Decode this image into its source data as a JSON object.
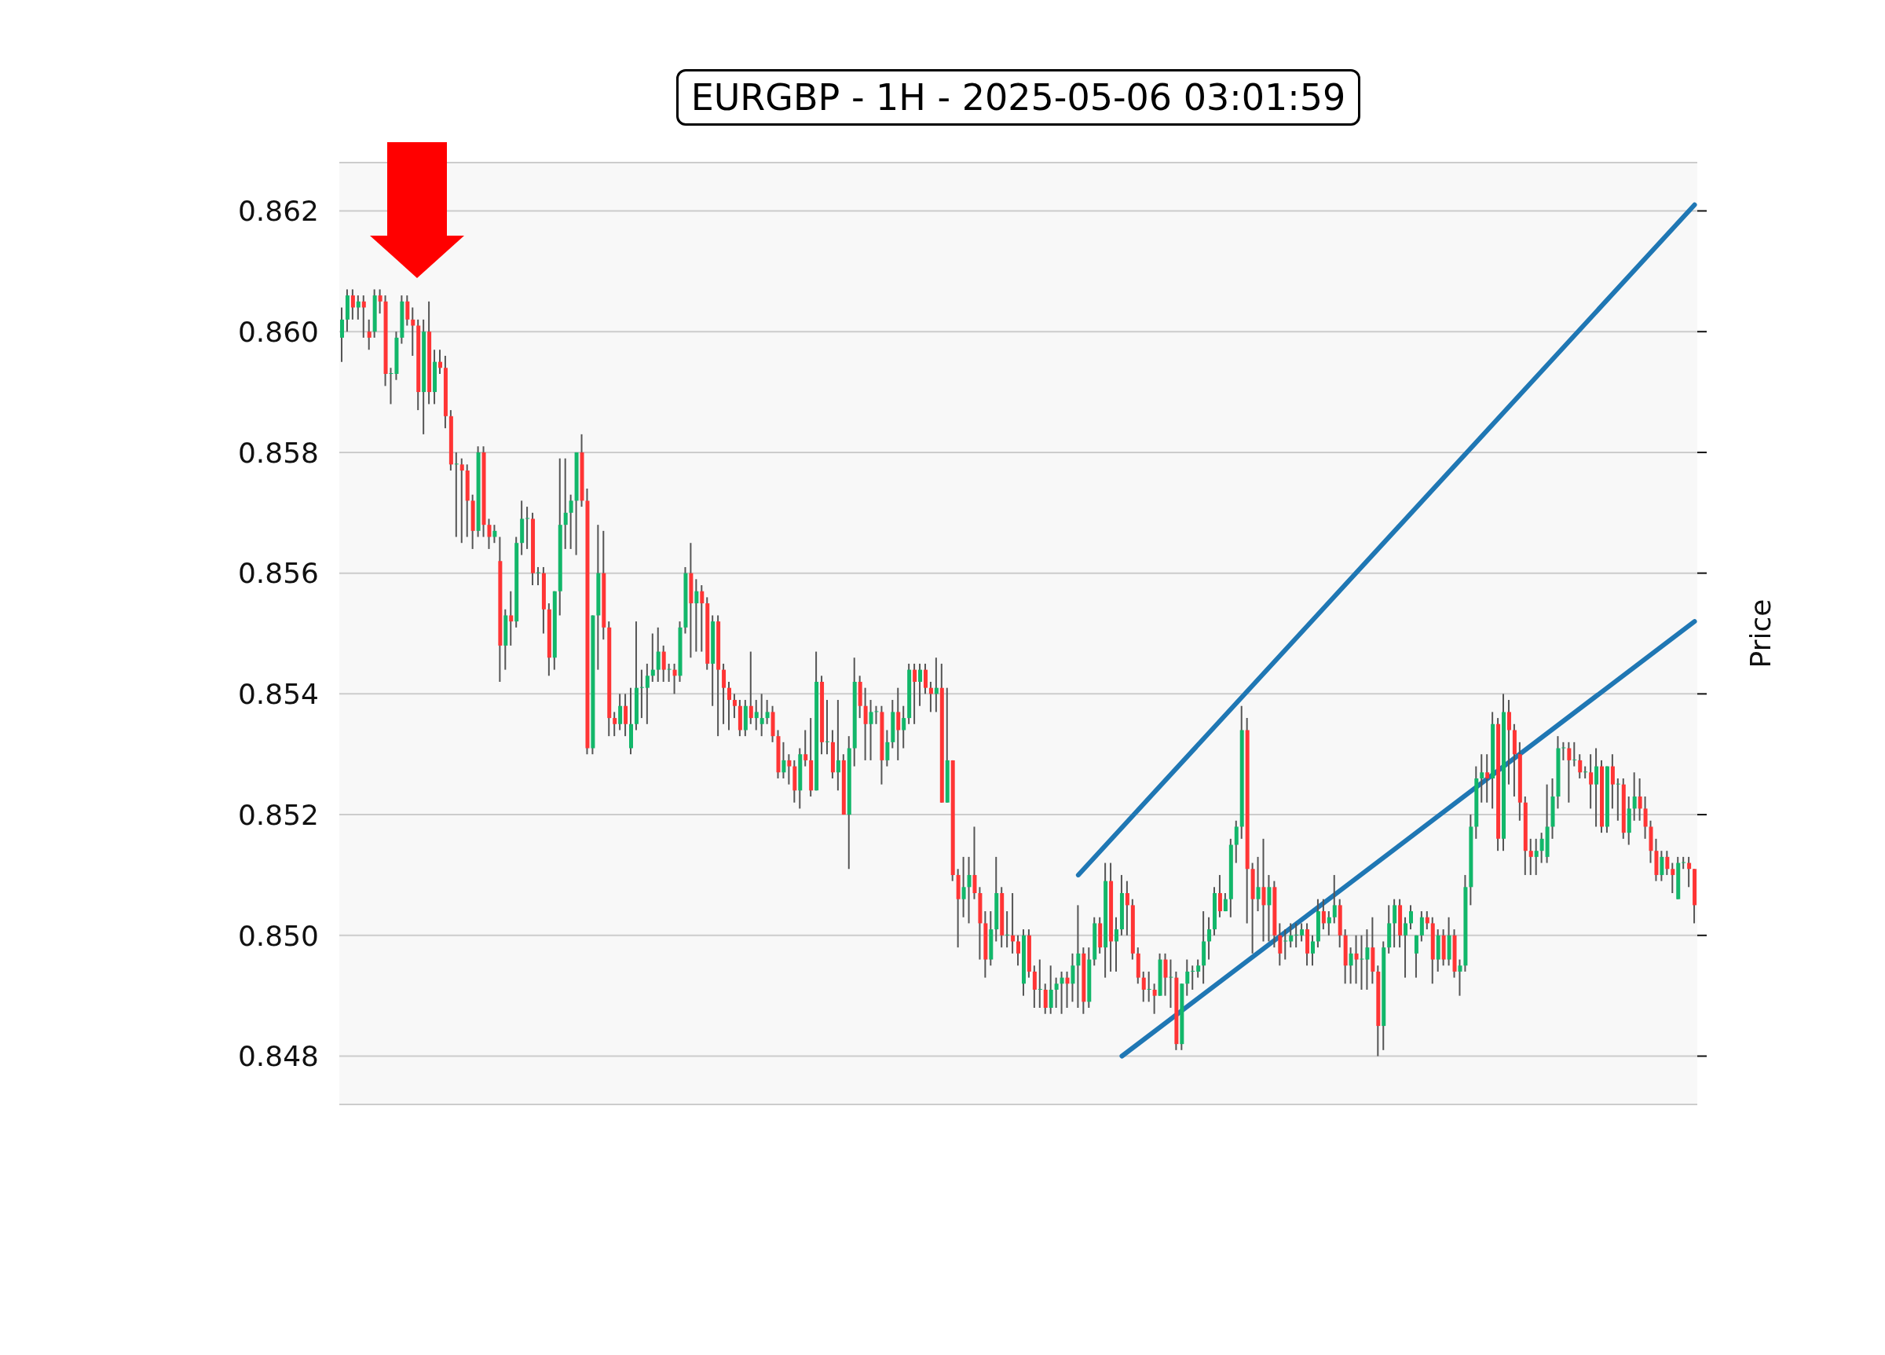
{
  "chart_data": {
    "type": "candlestick",
    "title": "EURGBP - 1H - 2025-05-06 03:01:59",
    "ylabel": "Price",
    "categories": [
      null,
      null,
      null,
      null,
      null,
      null,
      null,
      null,
      null,
      null,
      null,
      null,
      null,
      null,
      null,
      null,
      null,
      null,
      null,
      null,
      null,
      null,
      null,
      null,
      null,
      null,
      null,
      null,
      null,
      null,
      null,
      null,
      null,
      null,
      null,
      null,
      null,
      null,
      null,
      null,
      null,
      null,
      null,
      null,
      null,
      null,
      null,
      null,
      null,
      null,
      null,
      null,
      null,
      null,
      null,
      null,
      null,
      null,
      null,
      null,
      null,
      null,
      null,
      null,
      null,
      null,
      null,
      null,
      null,
      null,
      null,
      null,
      null,
      null,
      null,
      null,
      null,
      null,
      null,
      null,
      null,
      null,
      null,
      null,
      null,
      null,
      null,
      null,
      null,
      null,
      null,
      null,
      null,
      null,
      null,
      null,
      null,
      null,
      null,
      null,
      null,
      null,
      null,
      null,
      null,
      null,
      null,
      null,
      null,
      null,
      null,
      null,
      null,
      null,
      null,
      null,
      null,
      null,
      null,
      null,
      null,
      null,
      null,
      null,
      null,
      null,
      null,
      null,
      null,
      null,
      null,
      null,
      null,
      null,
      null,
      null,
      null,
      null,
      null,
      null,
      null,
      null,
      null,
      null,
      null,
      null,
      null,
      null,
      null,
      null,
      null,
      null,
      null,
      null,
      null,
      null,
      null,
      null,
      null,
      null,
      null,
      null,
      null,
      null,
      null,
      null,
      null,
      null,
      null,
      null,
      null,
      null,
      null,
      null,
      null,
      null,
      null,
      null,
      null,
      null,
      null,
      null,
      null,
      null,
      null,
      null,
      null,
      null,
      null,
      null,
      null,
      null,
      null,
      null,
      null,
      null,
      null,
      null,
      null,
      null,
      null,
      null,
      null,
      null,
      null,
      null,
      null,
      null,
      null,
      null,
      null,
      null,
      null,
      null,
      null,
      null,
      null,
      null,
      null,
      null,
      null,
      null,
      null,
      null,
      null,
      null,
      null,
      null,
      null,
      null,
      null,
      null,
      null,
      null,
      null,
      null,
      null,
      null,
      null,
      null,
      null,
      null,
      null,
      null,
      null,
      null,
      null,
      null,
      null
    ],
    "ohlc": [
      [
        0.8599,
        0.8604,
        0.8595,
        0.8602
      ],
      [
        0.8602,
        0.8607,
        0.86,
        0.8606
      ],
      [
        0.8606,
        0.8607,
        0.8602,
        0.8604
      ],
      [
        0.8604,
        0.8606,
        0.8602,
        0.8605
      ],
      [
        0.8605,
        0.8606,
        0.8599,
        0.8604
      ],
      [
        0.86,
        0.8602,
        0.8597,
        0.8599
      ],
      [
        0.86,
        0.8607,
        0.8599,
        0.8606
      ],
      [
        0.8606,
        0.8607,
        0.8603,
        0.8605
      ],
      [
        0.8605,
        0.8606,
        0.8591,
        0.8593
      ],
      [
        0.8593,
        0.8594,
        0.8588,
        0.8593
      ],
      [
        0.8593,
        0.86,
        0.8592,
        0.8599
      ],
      [
        0.8599,
        0.8606,
        0.8598,
        0.8605
      ],
      [
        0.8605,
        0.8606,
        0.8601,
        0.8602
      ],
      [
        0.8602,
        0.8604,
        0.8596,
        0.8601
      ],
      [
        0.8601,
        0.8602,
        0.8587,
        0.859
      ],
      [
        0.859,
        0.8602,
        0.8583,
        0.86
      ],
      [
        0.86,
        0.8605,
        0.8588,
        0.859
      ],
      [
        0.859,
        0.8597,
        0.8588,
        0.8595
      ],
      [
        0.8595,
        0.8597,
        0.8593,
        0.8594
      ],
      [
        0.8594,
        0.8596,
        0.8584,
        0.8586
      ],
      [
        0.8586,
        0.8587,
        0.8577,
        0.8578
      ],
      [
        0.8578,
        0.858,
        0.8566,
        0.8578
      ],
      [
        0.8578,
        0.8579,
        0.8565,
        0.8577
      ],
      [
        0.8577,
        0.8578,
        0.8566,
        0.8572
      ],
      [
        0.8572,
        0.8573,
        0.8564,
        0.8567
      ],
      [
        0.8567,
        0.8581,
        0.8566,
        0.858
      ],
      [
        0.858,
        0.8581,
        0.8566,
        0.8568
      ],
      [
        0.8568,
        0.8569,
        0.8564,
        0.8566
      ],
      [
        0.8566,
        0.8568,
        0.8565,
        0.8567
      ],
      [
        0.8562,
        0.8566,
        0.8542,
        0.8548
      ],
      [
        0.8548,
        0.8554,
        0.8544,
        0.8553
      ],
      [
        0.8553,
        0.8557,
        0.8548,
        0.8552
      ],
      [
        0.8552,
        0.8566,
        0.8551,
        0.8565
      ],
      [
        0.8565,
        0.8572,
        0.8563,
        0.8569
      ],
      [
        0.8569,
        0.8571,
        0.8564,
        0.8569
      ],
      [
        0.8569,
        0.857,
        0.8558,
        0.856
      ],
      [
        0.856,
        0.8561,
        0.8558,
        0.856
      ],
      [
        0.856,
        0.8561,
        0.855,
        0.8554
      ],
      [
        0.8554,
        0.8555,
        0.8543,
        0.8546
      ],
      [
        0.8546,
        0.8557,
        0.8544,
        0.8557
      ],
      [
        0.8557,
        0.8579,
        0.8553,
        0.8568
      ],
      [
        0.8568,
        0.8579,
        0.8564,
        0.857
      ],
      [
        0.857,
        0.8573,
        0.8564,
        0.8572
      ],
      [
        0.8572,
        0.858,
        0.8563,
        0.858
      ],
      [
        0.858,
        0.8583,
        0.8571,
        0.8572
      ],
      [
        0.8572,
        0.8574,
        0.853,
        0.8531
      ],
      [
        0.8531,
        0.8553,
        0.853,
        0.8553
      ],
      [
        0.8553,
        0.8568,
        0.8544,
        0.856
      ],
      [
        0.856,
        0.8567,
        0.8549,
        0.8551
      ],
      [
        0.8551,
        0.8552,
        0.8533,
        0.8536
      ],
      [
        0.8536,
        0.8537,
        0.8533,
        0.8535
      ],
      [
        0.8535,
        0.854,
        0.8534,
        0.8538
      ],
      [
        0.8538,
        0.854,
        0.8533,
        0.8535
      ],
      [
        0.8531,
        0.8541,
        0.853,
        0.8535
      ],
      [
        0.8535,
        0.8552,
        0.8534,
        0.8541
      ],
      [
        0.8541,
        0.8544,
        0.8536,
        0.8541
      ],
      [
        0.8541,
        0.8545,
        0.8535,
        0.8543
      ],
      [
        0.8543,
        0.855,
        0.8542,
        0.8544
      ],
      [
        0.8544,
        0.8551,
        0.8542,
        0.8547
      ],
      [
        0.8547,
        0.8548,
        0.8542,
        0.8544
      ],
      [
        0.8544,
        0.8545,
        0.8542,
        0.8544
      ],
      [
        0.8544,
        0.8545,
        0.854,
        0.8543
      ],
      [
        0.8543,
        0.8552,
        0.8542,
        0.8551
      ],
      [
        0.8551,
        0.8561,
        0.855,
        0.856
      ],
      [
        0.856,
        0.8565,
        0.8546,
        0.8555
      ],
      [
        0.8555,
        0.8559,
        0.8547,
        0.8557
      ],
      [
        0.8557,
        0.8558,
        0.8547,
        0.8555
      ],
      [
        0.8555,
        0.8556,
        0.8544,
        0.8545
      ],
      [
        0.8545,
        0.8553,
        0.8538,
        0.8552
      ],
      [
        0.8552,
        0.8553,
        0.8533,
        0.8544
      ],
      [
        0.8544,
        0.8545,
        0.8535,
        0.8541
      ],
      [
        0.8541,
        0.8542,
        0.8534,
        0.8539
      ],
      [
        0.8539,
        0.854,
        0.8536,
        0.8538
      ],
      [
        0.8538,
        0.8539,
        0.8533,
        0.8534
      ],
      [
        0.8534,
        0.8539,
        0.8533,
        0.8538
      ],
      [
        0.8538,
        0.8547,
        0.8535,
        0.8536
      ],
      [
        0.8536,
        0.8539,
        0.8534,
        0.8537
      ],
      [
        0.8535,
        0.854,
        0.8533,
        0.8536
      ],
      [
        0.8536,
        0.8539,
        0.8535,
        0.8537
      ],
      [
        0.8537,
        0.8538,
        0.8532,
        0.8533
      ],
      [
        0.8533,
        0.8534,
        0.8526,
        0.8527
      ],
      [
        0.8527,
        0.8532,
        0.8526,
        0.8529
      ],
      [
        0.8529,
        0.853,
        0.8525,
        0.8528
      ],
      [
        0.8528,
        0.8529,
        0.8522,
        0.8524
      ],
      [
        0.8524,
        0.8531,
        0.8521,
        0.853
      ],
      [
        0.853,
        0.8534,
        0.8528,
        0.8529
      ],
      [
        0.8529,
        0.8536,
        0.8523,
        0.8524
      ],
      [
        0.8524,
        0.8547,
        0.8524,
        0.8542
      ],
      [
        0.8542,
        0.8543,
        0.853,
        0.8532
      ],
      [
        0.8532,
        0.8539,
        0.853,
        0.8532
      ],
      [
        0.8532,
        0.8534,
        0.8526,
        0.8527
      ],
      [
        0.8527,
        0.8539,
        0.8524,
        0.8529
      ],
      [
        0.8529,
        0.853,
        0.852,
        0.852
      ],
      [
        0.852,
        0.8533,
        0.8511,
        0.8531
      ],
      [
        0.8531,
        0.8546,
        0.8528,
        0.8542
      ],
      [
        0.8542,
        0.8543,
        0.8536,
        0.8538
      ],
      [
        0.8538,
        0.8541,
        0.8529,
        0.8535
      ],
      [
        0.8535,
        0.8539,
        0.8529,
        0.8537
      ],
      [
        0.8537,
        0.8538,
        0.8535,
        0.8537
      ],
      [
        0.8537,
        0.8538,
        0.8525,
        0.8529
      ],
      [
        0.8529,
        0.8534,
        0.8528,
        0.8532
      ],
      [
        0.8532,
        0.8539,
        0.8531,
        0.8537
      ],
      [
        0.8537,
        0.8541,
        0.8529,
        0.8534
      ],
      [
        0.8534,
        0.8538,
        0.8531,
        0.8536
      ],
      [
        0.8536,
        0.8545,
        0.8535,
        0.8544
      ],
      [
        0.8544,
        0.8545,
        0.8535,
        0.8542
      ],
      [
        0.8542,
        0.8545,
        0.8538,
        0.8544
      ],
      [
        0.8544,
        0.8545,
        0.854,
        0.8541
      ],
      [
        0.8541,
        0.8542,
        0.8537,
        0.854
      ],
      [
        0.854,
        0.8546,
        0.8537,
        0.8541
      ],
      [
        0.8541,
        0.8545,
        0.8522,
        0.8522
      ],
      [
        0.8522,
        0.8541,
        0.8522,
        0.8529
      ],
      [
        0.8529,
        0.8529,
        0.8509,
        0.851
      ],
      [
        0.851,
        0.8511,
        0.8498,
        0.8506
      ],
      [
        0.8506,
        0.8513,
        0.8503,
        0.8508
      ],
      [
        0.8508,
        0.8513,
        0.8502,
        0.851
      ],
      [
        0.851,
        0.8518,
        0.8506,
        0.8507
      ],
      [
        0.8507,
        0.8508,
        0.8496,
        0.8502
      ],
      [
        0.8502,
        0.8504,
        0.8493,
        0.8496
      ],
      [
        0.8496,
        0.8504,
        0.8495,
        0.8501
      ],
      [
        0.8501,
        0.8513,
        0.8499,
        0.8507
      ],
      [
        0.8507,
        0.8508,
        0.8498,
        0.85
      ],
      [
        0.85,
        0.8504,
        0.8498,
        0.85
      ],
      [
        0.85,
        0.8507,
        0.8497,
        0.8499
      ],
      [
        0.8499,
        0.85,
        0.8495,
        0.8497
      ],
      [
        0.8492,
        0.8501,
        0.849,
        0.85
      ],
      [
        0.85,
        0.8501,
        0.8493,
        0.8494
      ],
      [
        0.8494,
        0.8495,
        0.8488,
        0.8491
      ],
      [
        0.8491,
        0.8496,
        0.8488,
        0.8491
      ],
      [
        0.8491,
        0.8492,
        0.8487,
        0.8488
      ],
      [
        0.8488,
        0.8495,
        0.8487,
        0.8491
      ],
      [
        0.8491,
        0.8493,
        0.8488,
        0.8492
      ],
      [
        0.8492,
        0.8494,
        0.8487,
        0.8493
      ],
      [
        0.8493,
        0.8494,
        0.8488,
        0.8492
      ],
      [
        0.8492,
        0.8497,
        0.8489,
        0.8495
      ],
      [
        0.8495,
        0.8505,
        0.8488,
        0.8497
      ],
      [
        0.8497,
        0.8498,
        0.8487,
        0.8489
      ],
      [
        0.8489,
        0.8498,
        0.8488,
        0.8496
      ],
      [
        0.8496,
        0.8503,
        0.8495,
        0.8502
      ],
      [
        0.8502,
        0.8503,
        0.8497,
        0.8498
      ],
      [
        0.8498,
        0.8512,
        0.8493,
        0.8509
      ],
      [
        0.8509,
        0.8512,
        0.8494,
        0.8499
      ],
      [
        0.8499,
        0.8503,
        0.8494,
        0.8501
      ],
      [
        0.8501,
        0.851,
        0.85,
        0.8507
      ],
      [
        0.8507,
        0.8509,
        0.85,
        0.8505
      ],
      [
        0.8505,
        0.8506,
        0.8496,
        0.8497
      ],
      [
        0.8497,
        0.8498,
        0.8492,
        0.8493
      ],
      [
        0.8493,
        0.8494,
        0.8489,
        0.8491
      ],
      [
        0.8491,
        0.8494,
        0.8489,
        0.8491
      ],
      [
        0.8491,
        0.8492,
        0.8487,
        0.849
      ],
      [
        0.849,
        0.8497,
        0.849,
        0.8496
      ],
      [
        0.8496,
        0.8497,
        0.849,
        0.8493
      ],
      [
        0.8493,
        0.8496,
        0.8488,
        0.8493
      ],
      [
        0.8493,
        0.8494,
        0.8481,
        0.8482
      ],
      [
        0.8482,
        0.8492,
        0.8481,
        0.8492
      ],
      [
        0.8492,
        0.8496,
        0.849,
        0.8494
      ],
      [
        0.8494,
        0.8495,
        0.8491,
        0.8494
      ],
      [
        0.8494,
        0.8496,
        0.8493,
        0.8495
      ],
      [
        0.8495,
        0.8504,
        0.8492,
        0.8499
      ],
      [
        0.8499,
        0.8503,
        0.8496,
        0.8501
      ],
      [
        0.8501,
        0.8508,
        0.85,
        0.8507
      ],
      [
        0.8507,
        0.851,
        0.8503,
        0.8504
      ],
      [
        0.8504,
        0.8507,
        0.8504,
        0.8506
      ],
      [
        0.8506,
        0.8516,
        0.8503,
        0.8515
      ],
      [
        0.8515,
        0.8519,
        0.8512,
        0.8518
      ],
      [
        0.8518,
        0.8538,
        0.8516,
        0.8534
      ],
      [
        0.8534,
        0.8536,
        0.8502,
        0.8511
      ],
      [
        0.8511,
        0.8512,
        0.8497,
        0.8506
      ],
      [
        0.8506,
        0.8513,
        0.8504,
        0.8508
      ],
      [
        0.8508,
        0.8516,
        0.8499,
        0.8505
      ],
      [
        0.8505,
        0.851,
        0.8499,
        0.8508
      ],
      [
        0.8508,
        0.8509,
        0.8498,
        0.85
      ],
      [
        0.85,
        0.8502,
        0.8495,
        0.8497
      ],
      [
        0.8499,
        0.8501,
        0.8496,
        0.8499
      ],
      [
        0.8499,
        0.8502,
        0.8498,
        0.85
      ],
      [
        0.85,
        0.8502,
        0.8498,
        0.85
      ],
      [
        0.85,
        0.8502,
        0.8499,
        0.8501
      ],
      [
        0.8501,
        0.8502,
        0.8495,
        0.8497
      ],
      [
        0.8497,
        0.85,
        0.8495,
        0.8499
      ],
      [
        0.8499,
        0.8506,
        0.8498,
        0.8504
      ],
      [
        0.8504,
        0.8506,
        0.8501,
        0.8502
      ],
      [
        0.8502,
        0.8504,
        0.85,
        0.8503
      ],
      [
        0.8503,
        0.851,
        0.8502,
        0.8505
      ],
      [
        0.8505,
        0.8506,
        0.8498,
        0.85
      ],
      [
        0.85,
        0.8501,
        0.8492,
        0.8495
      ],
      [
        0.8495,
        0.8498,
        0.8492,
        0.8497
      ],
      [
        0.8497,
        0.85,
        0.8492,
        0.8496
      ],
      [
        0.8496,
        0.85,
        0.8491,
        0.8496
      ],
      [
        0.8496,
        0.8501,
        0.8491,
        0.8498
      ],
      [
        0.8498,
        0.8503,
        0.8492,
        0.8494
      ],
      [
        0.8494,
        0.8495,
        0.848,
        0.8485
      ],
      [
        0.8485,
        0.8499,
        0.8481,
        0.8498
      ],
      [
        0.8498,
        0.8505,
        0.8497,
        0.8502
      ],
      [
        0.8502,
        0.8506,
        0.8498,
        0.8505
      ],
      [
        0.8505,
        0.8506,
        0.8498,
        0.85
      ],
      [
        0.85,
        0.8503,
        0.8493,
        0.8502
      ],
      [
        0.8502,
        0.8505,
        0.8501,
        0.8504
      ],
      [
        0.8497,
        0.85,
        0.8493,
        0.85
      ],
      [
        0.85,
        0.8504,
        0.8499,
        0.8503
      ],
      [
        0.8503,
        0.8504,
        0.8501,
        0.8502
      ],
      [
        0.8502,
        0.8503,
        0.8492,
        0.8496
      ],
      [
        0.8496,
        0.8501,
        0.8494,
        0.85
      ],
      [
        0.85,
        0.8501,
        0.8495,
        0.8496
      ],
      [
        0.8496,
        0.8503,
        0.8495,
        0.85
      ],
      [
        0.85,
        0.8501,
        0.8493,
        0.8494
      ],
      [
        0.8494,
        0.8496,
        0.849,
        0.8495
      ],
      [
        0.8495,
        0.851,
        0.8494,
        0.8508
      ],
      [
        0.8508,
        0.852,
        0.8505,
        0.8518
      ],
      [
        0.8518,
        0.8528,
        0.8516,
        0.8526
      ],
      [
        0.8526,
        0.853,
        0.8522,
        0.8527
      ],
      [
        0.8527,
        0.853,
        0.8522,
        0.8526
      ],
      [
        0.8526,
        0.8537,
        0.8521,
        0.8535
      ],
      [
        0.8535,
        0.8536,
        0.8514,
        0.8516
      ],
      [
        0.8516,
        0.854,
        0.8514,
        0.8537
      ],
      [
        0.8537,
        0.8539,
        0.8525,
        0.8534
      ],
      [
        0.8534,
        0.8535,
        0.8523,
        0.853
      ],
      [
        0.853,
        0.8532,
        0.8519,
        0.8522
      ],
      [
        0.8522,
        0.8523,
        0.851,
        0.8514
      ],
      [
        0.8514,
        0.8516,
        0.851,
        0.8513
      ],
      [
        0.8513,
        0.8516,
        0.851,
        0.8514
      ],
      [
        0.8514,
        0.8517,
        0.8512,
        0.8516
      ],
      [
        0.8513,
        0.8525,
        0.8512,
        0.8518
      ],
      [
        0.8518,
        0.8526,
        0.8516,
        0.8523
      ],
      [
        0.8523,
        0.8533,
        0.8521,
        0.8531
      ],
      [
        0.8531,
        0.8532,
        0.8529,
        0.8531
      ],
      [
        0.8531,
        0.8532,
        0.8522,
        0.8529
      ],
      [
        0.8529,
        0.8532,
        0.8528,
        0.8529
      ],
      [
        0.8529,
        0.853,
        0.8526,
        0.8527
      ],
      [
        0.8527,
        0.8528,
        0.8526,
        0.8527
      ],
      [
        0.8527,
        0.853,
        0.8521,
        0.8525
      ],
      [
        0.8525,
        0.8531,
        0.8518,
        0.8528
      ],
      [
        0.8528,
        0.8529,
        0.8517,
        0.8518
      ],
      [
        0.8518,
        0.8528,
        0.8517,
        0.8528
      ],
      [
        0.8528,
        0.853,
        0.8521,
        0.8525
      ],
      [
        0.8525,
        0.8526,
        0.8519,
        0.8525
      ],
      [
        0.8525,
        0.8526,
        0.8516,
        0.8517
      ],
      [
        0.8517,
        0.8523,
        0.8515,
        0.8521
      ],
      [
        0.8521,
        0.8527,
        0.8519,
        0.8523
      ],
      [
        0.8523,
        0.8526,
        0.8519,
        0.8521
      ],
      [
        0.8521,
        0.8523,
        0.8516,
        0.8518
      ],
      [
        0.8518,
        0.8519,
        0.8512,
        0.8514
      ],
      [
        0.8514,
        0.8516,
        0.8509,
        0.851
      ],
      [
        0.851,
        0.8514,
        0.8509,
        0.8513
      ],
      [
        0.8513,
        0.8514,
        0.851,
        0.8511
      ],
      [
        0.8511,
        0.8512,
        0.8507,
        0.851
      ],
      [
        0.8506,
        0.8513,
        0.8506,
        0.8512
      ],
      [
        0.8512,
        0.8513,
        0.8511,
        0.8512
      ],
      [
        0.8512,
        0.8513,
        0.8508,
        0.8511
      ],
      [
        0.8511,
        0.8511,
        0.8502,
        0.8505
      ]
    ],
    "series": [
      {
        "type": "line",
        "color": "#1f77b4",
        "values": [
          null,
          null,
          null,
          null,
          null,
          null,
          null,
          null,
          null,
          null,
          null,
          null,
          null,
          null,
          null,
          null,
          null,
          null,
          null,
          null,
          null,
          null,
          null,
          null,
          null,
          null,
          null,
          null,
          null,
          null,
          null,
          null,
          null,
          null,
          null,
          null,
          null,
          null,
          null,
          null,
          null,
          null,
          null,
          null,
          null,
          null,
          null,
          null,
          null,
          null,
          null,
          null,
          null,
          null,
          null,
          null,
          null,
          null,
          null,
          null,
          null,
          null,
          null,
          null,
          null,
          null,
          null,
          null,
          null,
          null,
          null,
          null,
          null,
          null,
          null,
          null,
          null,
          null,
          null,
          null,
          null,
          null,
          null,
          null,
          null,
          null,
          null,
          null,
          null,
          null,
          null,
          null,
          null,
          null,
          null,
          null,
          null,
          null,
          null,
          null,
          null,
          null,
          null,
          null,
          null,
          null,
          null,
          null,
          null,
          null,
          null,
          null,
          null,
          null,
          null,
          null,
          null,
          null,
          null,
          null,
          null,
          null,
          null,
          null,
          null,
          null,
          null,
          null,
          null,
          null,
          null,
          null,
          null,
          null,
          null,
          0.851,
          null,
          null,
          null,
          null,
          null,
          null,
          null,
          null,
          null,
          null,
          null,
          null,
          null,
          null,
          null,
          null,
          null,
          null,
          null,
          null,
          null,
          null,
          null,
          null,
          null,
          null,
          null,
          null,
          null,
          null,
          null,
          null,
          null,
          null,
          null,
          null,
          null,
          null,
          null,
          null,
          null,
          null,
          null,
          null,
          null,
          null,
          null,
          null,
          null,
          null,
          null,
          null,
          null,
          null,
          null,
          null,
          null,
          null,
          null,
          null,
          null,
          null,
          null,
          null,
          null,
          null,
          null,
          null,
          null,
          null,
          null,
          null,
          null,
          null,
          null,
          null,
          null,
          null,
          null,
          null,
          null,
          null,
          null,
          null,
          null,
          null,
          null,
          null,
          null,
          null,
          null,
          null,
          null,
          null,
          null,
          null,
          null,
          null,
          null,
          null,
          null,
          null,
          null,
          null,
          null,
          null,
          null,
          null,
          null,
          null,
          null,
          null,
          0.8621
        ]
      },
      {
        "type": "line",
        "color": "#1f77b4",
        "values": [
          null,
          null,
          null,
          null,
          null,
          null,
          null,
          null,
          null,
          null,
          null,
          null,
          null,
          null,
          null,
          null,
          null,
          null,
          null,
          null,
          null,
          null,
          null,
          null,
          null,
          null,
          null,
          null,
          null,
          null,
          null,
          null,
          null,
          null,
          null,
          null,
          null,
          null,
          null,
          null,
          null,
          null,
          null,
          null,
          null,
          null,
          null,
          null,
          null,
          null,
          null,
          null,
          null,
          null,
          null,
          null,
          null,
          null,
          null,
          null,
          null,
          null,
          null,
          null,
          null,
          null,
          null,
          null,
          null,
          null,
          null,
          null,
          null,
          null,
          null,
          null,
          null,
          null,
          null,
          null,
          null,
          null,
          null,
          null,
          null,
          null,
          null,
          null,
          null,
          null,
          null,
          null,
          null,
          null,
          null,
          null,
          null,
          null,
          null,
          null,
          null,
          null,
          null,
          null,
          null,
          null,
          null,
          null,
          null,
          null,
          null,
          null,
          null,
          null,
          null,
          null,
          null,
          null,
          null,
          null,
          null,
          null,
          null,
          null,
          null,
          null,
          null,
          null,
          null,
          null,
          null,
          null,
          null,
          null,
          null,
          null,
          null,
          null,
          null,
          null,
          null,
          null,
          null,
          0.848,
          null,
          null,
          null,
          null,
          null,
          null,
          null,
          null,
          null,
          null,
          null,
          null,
          null,
          null,
          null,
          null,
          null,
          null,
          null,
          null,
          null,
          null,
          null,
          null,
          null,
          null,
          null,
          null,
          null,
          null,
          null,
          null,
          null,
          null,
          null,
          null,
          null,
          null,
          null,
          null,
          null,
          null,
          null,
          null,
          null,
          null,
          null,
          null,
          null,
          null,
          null,
          null,
          null,
          null,
          null,
          null,
          null,
          null,
          null,
          null,
          null,
          null,
          null,
          null,
          null,
          null,
          null,
          null,
          null,
          null,
          null,
          null,
          null,
          null,
          null,
          null,
          null,
          null,
          null,
          null,
          null,
          null,
          null,
          null,
          null,
          null,
          null,
          null,
          null,
          null,
          null,
          null,
          null,
          null,
          null,
          null,
          null,
          null,
          null,
          null,
          null,
          null,
          null,
          null,
          0.8552
        ]
      }
    ],
    "ylim": [
      0.8472,
      0.8628
    ],
    "yticks": [
      {
        "value": 0.848,
        "label": "0.848"
      },
      {
        "value": 0.85,
        "label": "0.850"
      },
      {
        "value": 0.852,
        "label": "0.852"
      },
      {
        "value": 0.854,
        "label": "0.854"
      },
      {
        "value": 0.856,
        "label": "0.856"
      },
      {
        "value": 0.858,
        "label": "0.858"
      },
      {
        "value": 0.86,
        "label": "0.860"
      },
      {
        "value": 0.862,
        "label": "0.862"
      }
    ],
    "grid": "y"
  }
}
